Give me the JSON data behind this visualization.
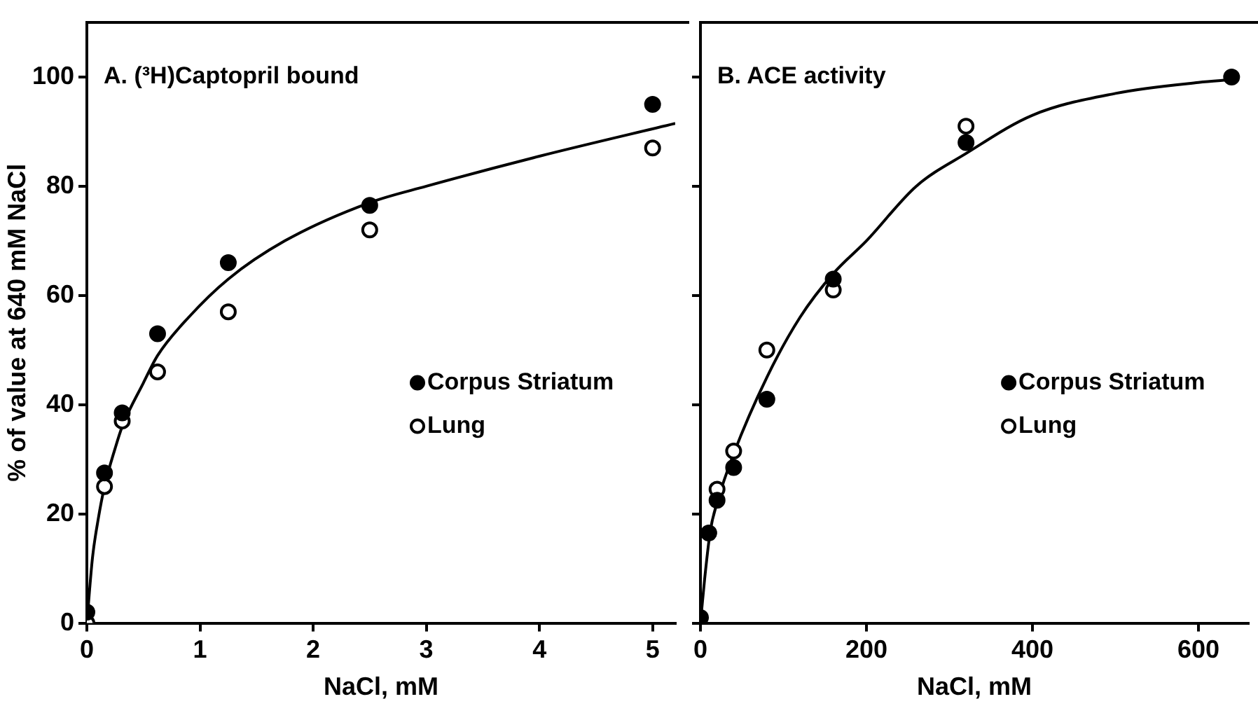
{
  "chart_data": [
    {
      "type": "scatter",
      "title": "A. (³H)Captopril bound",
      "xlabel": "NaCl, mM",
      "ylabel": "% of value at 640 mM NaCl",
      "x": [
        0,
        0.156,
        0.3125,
        0.625,
        1.25,
        2.5,
        5
      ],
      "series": [
        {
          "name": "Corpus Striatum",
          "color": "#000000",
          "values": [
            2,
            27.5,
            38.5,
            53,
            66,
            76.5,
            95
          ]
        },
        {
          "name": "Lung",
          "color": "#000000",
          "values": [
            0,
            25,
            37,
            46,
            57,
            72,
            87
          ]
        },
        {
          "type": "line",
          "color": "#000000",
          "marker": "none",
          "x": [
            0,
            0.05,
            0.1,
            0.156,
            0.25,
            0.3125,
            0.5,
            0.625,
            0.9,
            1.25,
            1.75,
            2.5,
            3,
            4,
            5.2
          ],
          "values": [
            0,
            12,
            19,
            25,
            32,
            36,
            44,
            49,
            56,
            63,
            70,
            77,
            80,
            85.5,
            91.5
          ]
        }
      ],
      "xlim": [
        0,
        5.2
      ],
      "ylim": [
        0,
        110
      ],
      "xticks": [
        0,
        1,
        2,
        3,
        4,
        5
      ],
      "yticks": [
        0,
        20,
        40,
        60,
        80,
        100
      ],
      "grid": false,
      "legend": "right",
      "marker": "circle"
    },
    {
      "type": "scatter",
      "title": "B. ACE activity",
      "xlabel": "NaCl, mM",
      "x": [
        0,
        10,
        20,
        40,
        80,
        160,
        320,
        640
      ],
      "series": [
        {
          "name": "Corpus Striatum",
          "color": "#000000",
          "values": [
            1,
            16.5,
            22.5,
            28.5,
            41,
            63,
            88,
            100
          ]
        },
        {
          "name": "Lung",
          "color": "#000000",
          "values": [
            null,
            null,
            24.5,
            31.5,
            50,
            61,
            91,
            null
          ]
        },
        {
          "type": "line",
          "color": "#000000",
          "marker": "none",
          "x": [
            0,
            5,
            12,
            20,
            40,
            80,
            120,
            160,
            200,
            260,
            320,
            400,
            500,
            600,
            640
          ],
          "values": [
            0,
            8,
            17,
            22,
            31,
            45,
            56,
            64,
            70,
            80,
            86,
            93,
            97,
            99,
            99.5
          ]
        }
      ],
      "xlim": [
        0,
        660
      ],
      "ylim": [
        0,
        110
      ],
      "xticks": [
        0,
        200,
        400,
        600
      ],
      "yticks": [
        {
          "value": 0,
          "label": null
        },
        {
          "value": 20,
          "label": null
        },
        {
          "value": 40,
          "label": null
        },
        {
          "value": 60,
          "label": null
        },
        {
          "value": 80,
          "label": null
        },
        {
          "value": 100,
          "label": null
        }
      ],
      "tick_labels": "x",
      "grid": false,
      "legend": "right",
      "marker": "circle"
    }
  ]
}
